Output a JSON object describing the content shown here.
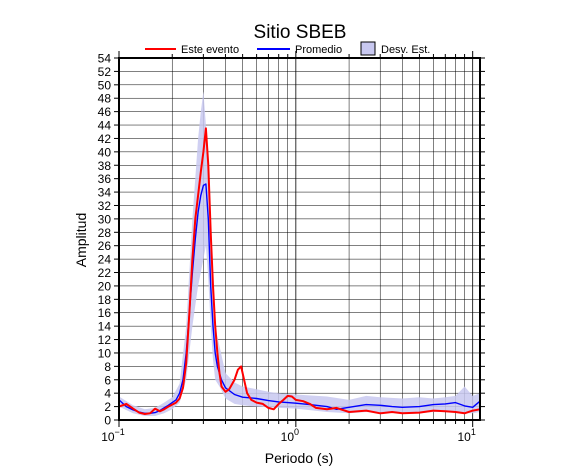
{
  "chart_data": {
    "type": "line",
    "title": "Sitio SBEB",
    "xlabel": "Periodo (s)",
    "ylabel": "Amplitud",
    "x_scale": "log",
    "xlim": [
      0.1,
      11
    ],
    "ylim": [
      0,
      54
    ],
    "grid": true,
    "legend_position": "top",
    "x_tick_labels": [
      {
        "base": "10",
        "exp": "−1",
        "value": 0.1
      },
      {
        "base": "10",
        "exp": "0",
        "value": 1
      },
      {
        "base": "10",
        "exp": "1",
        "value": 10
      }
    ],
    "y_ticks": [
      0,
      2,
      4,
      6,
      8,
      10,
      12,
      14,
      16,
      18,
      20,
      22,
      24,
      26,
      28,
      30,
      32,
      34,
      36,
      38,
      40,
      42,
      44,
      46,
      48,
      50,
      52,
      54
    ],
    "legend": [
      {
        "label": "Este evento",
        "kind": "line",
        "color": "#ff0000"
      },
      {
        "label": "Promedio",
        "kind": "line",
        "color": "#0000ff"
      },
      {
        "label": "Desv. Est.",
        "kind": "band",
        "color": "#c8c8f0"
      }
    ],
    "series": [
      {
        "name": "Este evento",
        "color": "#ff0000",
        "points": [
          [
            0.1,
            2.0
          ],
          [
            0.11,
            2.4
          ],
          [
            0.12,
            1.7
          ],
          [
            0.13,
            1.1
          ],
          [
            0.14,
            0.9
          ],
          [
            0.15,
            1.0
          ],
          [
            0.16,
            1.7
          ],
          [
            0.17,
            1.3
          ],
          [
            0.18,
            1.6
          ],
          [
            0.19,
            2.0
          ],
          [
            0.2,
            2.3
          ],
          [
            0.21,
            2.6
          ],
          [
            0.22,
            3.2
          ],
          [
            0.23,
            4.8
          ],
          [
            0.24,
            8.5
          ],
          [
            0.25,
            16.0
          ],
          [
            0.26,
            24.0
          ],
          [
            0.27,
            30.0
          ],
          [
            0.28,
            33.5
          ],
          [
            0.29,
            37.0
          ],
          [
            0.3,
            40.0
          ],
          [
            0.31,
            43.5
          ],
          [
            0.32,
            38.0
          ],
          [
            0.33,
            28.0
          ],
          [
            0.34,
            20.0
          ],
          [
            0.35,
            14.0
          ],
          [
            0.36,
            10.0
          ],
          [
            0.37,
            7.0
          ],
          [
            0.38,
            5.0
          ],
          [
            0.4,
            4.2
          ],
          [
            0.42,
            4.6
          ],
          [
            0.45,
            6.0
          ],
          [
            0.47,
            7.5
          ],
          [
            0.49,
            8.0
          ],
          [
            0.51,
            6.0
          ],
          [
            0.53,
            4.0
          ],
          [
            0.56,
            3.0
          ],
          [
            0.6,
            2.6
          ],
          [
            0.65,
            2.4
          ],
          [
            0.7,
            1.8
          ],
          [
            0.75,
            1.6
          ],
          [
            0.8,
            2.4
          ],
          [
            0.85,
            3.0
          ],
          [
            0.9,
            3.6
          ],
          [
            0.95,
            3.5
          ],
          [
            1.0,
            3.0
          ],
          [
            1.1,
            2.8
          ],
          [
            1.2,
            2.4
          ],
          [
            1.3,
            1.8
          ],
          [
            1.5,
            1.6
          ],
          [
            1.7,
            1.8
          ],
          [
            2.0,
            1.2
          ],
          [
            2.5,
            1.4
          ],
          [
            3.0,
            1.0
          ],
          [
            3.5,
            1.2
          ],
          [
            4.0,
            1.0
          ],
          [
            5.0,
            1.1
          ],
          [
            6.0,
            1.4
          ],
          [
            7.0,
            1.3
          ],
          [
            8.0,
            1.2
          ],
          [
            9.0,
            1.0
          ],
          [
            10.0,
            1.4
          ],
          [
            11.0,
            1.6
          ]
        ]
      },
      {
        "name": "Promedio",
        "color": "#0000ff",
        "points": [
          [
            0.1,
            3.0
          ],
          [
            0.11,
            2.0
          ],
          [
            0.12,
            1.5
          ],
          [
            0.13,
            1.2
          ],
          [
            0.14,
            1.0
          ],
          [
            0.15,
            1.0
          ],
          [
            0.16,
            1.1
          ],
          [
            0.17,
            1.4
          ],
          [
            0.18,
            1.8
          ],
          [
            0.19,
            2.2
          ],
          [
            0.2,
            2.6
          ],
          [
            0.21,
            3.0
          ],
          [
            0.22,
            4.0
          ],
          [
            0.23,
            6.0
          ],
          [
            0.24,
            10.0
          ],
          [
            0.25,
            16.0
          ],
          [
            0.26,
            22.0
          ],
          [
            0.27,
            27.0
          ],
          [
            0.28,
            31.0
          ],
          [
            0.29,
            33.5
          ],
          [
            0.3,
            35.0
          ],
          [
            0.31,
            35.2
          ],
          [
            0.32,
            30.0
          ],
          [
            0.33,
            20.0
          ],
          [
            0.34,
            14.0
          ],
          [
            0.35,
            10.0
          ],
          [
            0.36,
            8.0
          ],
          [
            0.38,
            6.0
          ],
          [
            0.4,
            4.8
          ],
          [
            0.45,
            3.8
          ],
          [
            0.5,
            3.4
          ],
          [
            0.6,
            3.2
          ],
          [
            0.7,
            2.9
          ],
          [
            0.8,
            2.7
          ],
          [
            0.9,
            2.6
          ],
          [
            1.0,
            2.5
          ],
          [
            1.2,
            2.3
          ],
          [
            1.5,
            2.0
          ],
          [
            1.7,
            1.6
          ],
          [
            2.0,
            1.9
          ],
          [
            2.5,
            2.3
          ],
          [
            3.0,
            2.2
          ],
          [
            3.5,
            2.0
          ],
          [
            4.0,
            1.9
          ],
          [
            5.0,
            2.0
          ],
          [
            6.0,
            2.3
          ],
          [
            7.0,
            2.4
          ],
          [
            8.0,
            2.6
          ],
          [
            9.0,
            2.1
          ],
          [
            10.0,
            1.9
          ],
          [
            11.0,
            2.8
          ]
        ]
      }
    ],
    "std_band": {
      "name": "Desv. Est.",
      "color": "#c8c8f0",
      "upper": [
        [
          0.1,
          3.5
        ],
        [
          0.12,
          2.2
        ],
        [
          0.14,
          1.6
        ],
        [
          0.16,
          1.8
        ],
        [
          0.18,
          2.6
        ],
        [
          0.2,
          3.4
        ],
        [
          0.22,
          5.4
        ],
        [
          0.24,
          14.0
        ],
        [
          0.26,
          30.0
        ],
        [
          0.28,
          42.0
        ],
        [
          0.29,
          46.0
        ],
        [
          0.3,
          49.0
        ],
        [
          0.31,
          44.0
        ],
        [
          0.32,
          40.0
        ],
        [
          0.33,
          28.0
        ],
        [
          0.34,
          20.0
        ],
        [
          0.35,
          14.0
        ],
        [
          0.37,
          11.0
        ],
        [
          0.4,
          7.0
        ],
        [
          0.45,
          5.6
        ],
        [
          0.5,
          5.0
        ],
        [
          0.6,
          4.6
        ],
        [
          0.7,
          4.2
        ],
        [
          0.8,
          4.0
        ],
        [
          1.0,
          3.8
        ],
        [
          1.5,
          3.5
        ],
        [
          2.0,
          3.0
        ],
        [
          2.5,
          3.6
        ],
        [
          3.0,
          3.4
        ],
        [
          4.0,
          3.2
        ],
        [
          5.0,
          3.4
        ],
        [
          6.0,
          3.2
        ],
        [
          7.0,
          3.4
        ],
        [
          8.0,
          3.6
        ],
        [
          9.0,
          5.0
        ],
        [
          10.0,
          3.6
        ],
        [
          11.0,
          4.0
        ]
      ],
      "lower": [
        [
          0.1,
          2.0
        ],
        [
          0.12,
          1.0
        ],
        [
          0.14,
          0.6
        ],
        [
          0.16,
          0.6
        ],
        [
          0.18,
          1.0
        ],
        [
          0.2,
          1.6
        ],
        [
          0.22,
          2.6
        ],
        [
          0.24,
          6.0
        ],
        [
          0.26,
          14.0
        ],
        [
          0.28,
          20.0
        ],
        [
          0.29,
          22.0
        ],
        [
          0.3,
          24.0
        ],
        [
          0.31,
          26.0
        ],
        [
          0.32,
          21.0
        ],
        [
          0.33,
          14.0
        ],
        [
          0.34,
          9.0
        ],
        [
          0.35,
          6.0
        ],
        [
          0.37,
          5.0
        ],
        [
          0.4,
          3.2
        ],
        [
          0.45,
          2.4
        ],
        [
          0.5,
          2.2
        ],
        [
          0.6,
          2.0
        ],
        [
          0.7,
          1.9
        ],
        [
          0.8,
          1.8
        ],
        [
          1.0,
          1.7
        ],
        [
          1.5,
          1.2
        ],
        [
          2.0,
          1.0
        ],
        [
          2.5,
          1.2
        ],
        [
          3.0,
          1.1
        ],
        [
          4.0,
          1.0
        ],
        [
          5.0,
          1.0
        ],
        [
          6.0,
          1.2
        ],
        [
          7.0,
          1.2
        ],
        [
          8.0,
          1.3
        ],
        [
          9.0,
          1.0
        ],
        [
          10.0,
          1.0
        ],
        [
          11.0,
          1.2
        ]
      ]
    }
  }
}
